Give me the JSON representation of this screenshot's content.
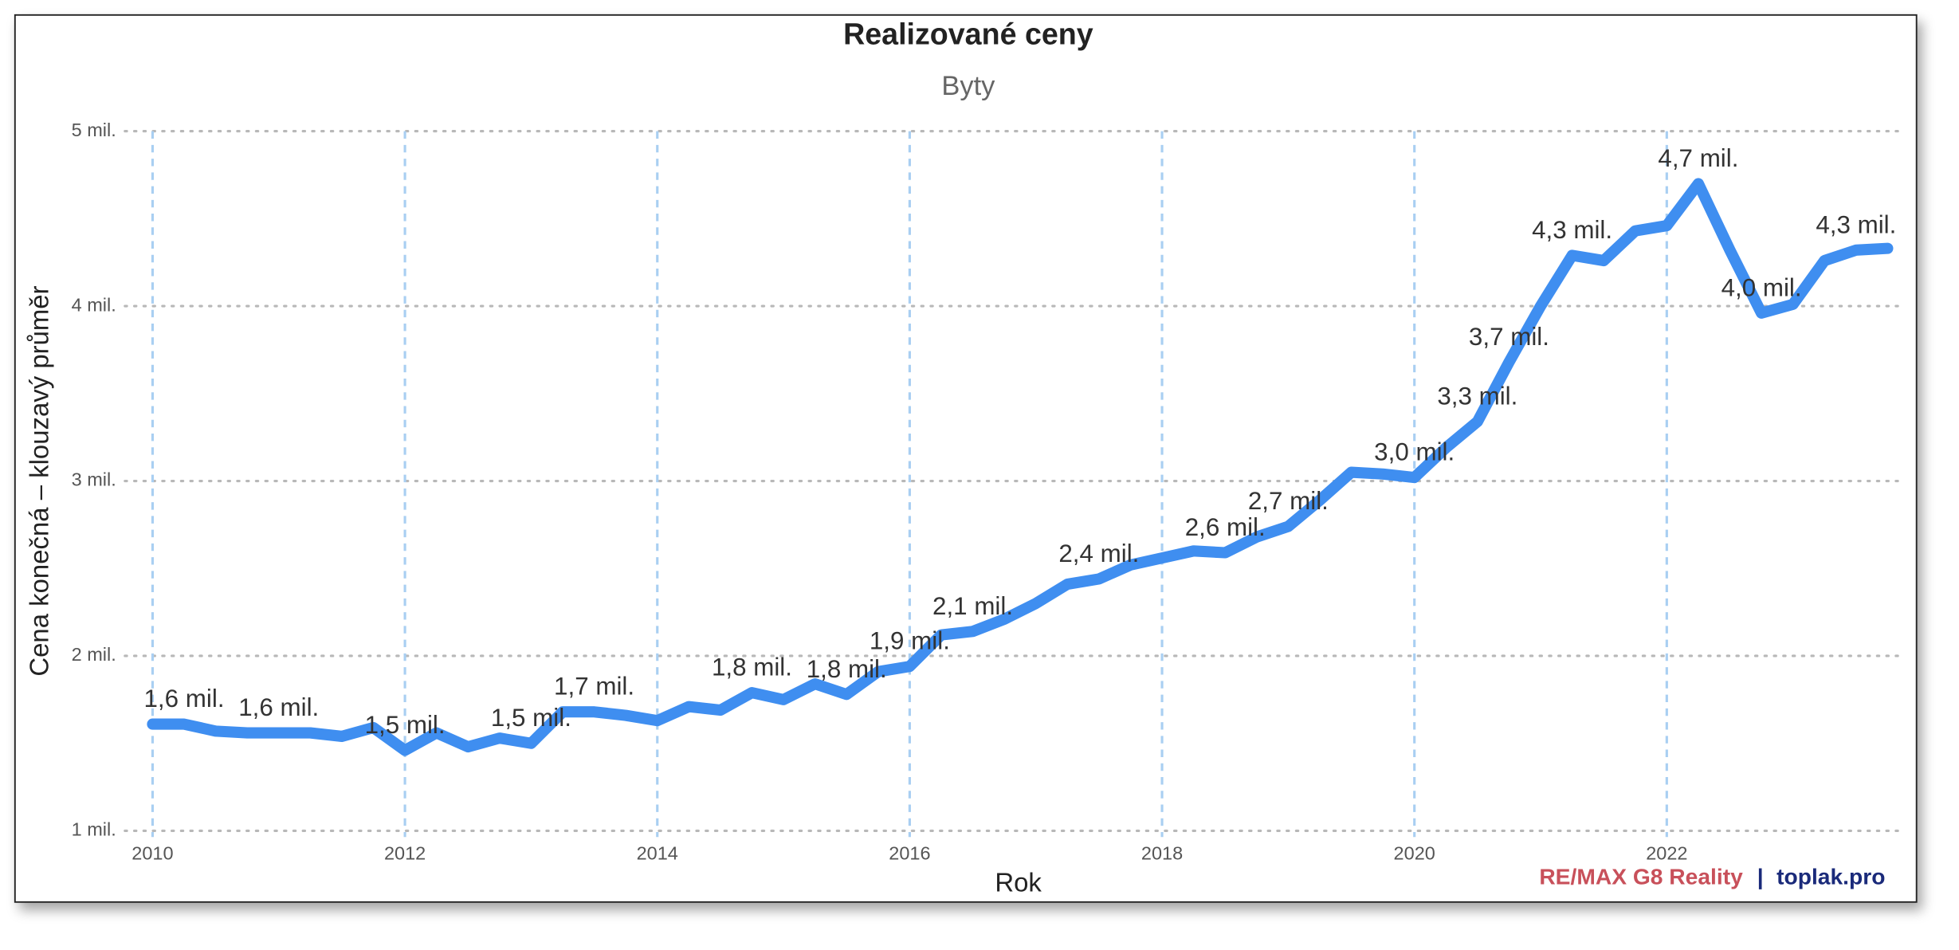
{
  "chart_data": {
    "type": "line",
    "title": "Realizované ceny",
    "subtitle": "Byty",
    "x_label": "Rok",
    "y_label": "Cena konečná – klouzavý průměr",
    "brand": "RE/MAX G8 Reality",
    "separator": "|",
    "site": "toplak.pro",
    "x": [
      2010,
      2010.25,
      2010.5,
      2010.75,
      2011,
      2011.25,
      2011.5,
      2011.75,
      2012,
      2012.25,
      2012.5,
      2012.75,
      2013,
      2013.25,
      2013.5,
      2013.75,
      2014,
      2014.25,
      2014.5,
      2014.75,
      2015,
      2015.25,
      2015.5,
      2015.75,
      2016,
      2016.25,
      2016.5,
      2016.75,
      2017,
      2017.25,
      2017.5,
      2017.75,
      2018,
      2018.25,
      2018.5,
      2018.75,
      2019,
      2019.25,
      2019.5,
      2019.75,
      2020,
      2020.25,
      2020.5,
      2020.75,
      2021,
      2021.25,
      2021.5,
      2021.75,
      2022,
      2022.25,
      2022.5,
      2022.75,
      2023,
      2023.25,
      2023.5,
      2023.75
    ],
    "series": [
      {
        "name": "Byty",
        "color": "#3f8ef0",
        "values": [
          1.61,
          1.61,
          1.57,
          1.56,
          1.56,
          1.56,
          1.54,
          1.59,
          1.46,
          1.56,
          1.48,
          1.53,
          1.5,
          1.68,
          1.68,
          1.66,
          1.63,
          1.71,
          1.69,
          1.79,
          1.75,
          1.84,
          1.78,
          1.91,
          1.94,
          2.12,
          2.14,
          2.21,
          2.3,
          2.41,
          2.44,
          2.52,
          2.56,
          2.6,
          2.59,
          2.68,
          2.74,
          2.89,
          3.05,
          3.04,
          3.02,
          3.19,
          3.34,
          3.68,
          4.0,
          4.29,
          4.26,
          4.43,
          4.46,
          4.7,
          4.32,
          3.96,
          4.01,
          4.26,
          4.32,
          4.33
        ],
        "value_labels": [
          null,
          "1,6 mil.",
          null,
          null,
          "1,6 mil.",
          null,
          null,
          null,
          "1,5 mil.",
          null,
          null,
          null,
          "1,5 mil.",
          null,
          "1,7 mil.",
          null,
          null,
          null,
          null,
          "1,8 mil.",
          null,
          null,
          "1,8 mil.",
          null,
          "1,9 mil.",
          null,
          "2,1 mil.",
          null,
          null,
          null,
          "2,4 mil.",
          null,
          null,
          null,
          "2,6 mil.",
          null,
          "2,7 mil.",
          null,
          null,
          null,
          "3,0 mil.",
          null,
          "3,3 mil.",
          "3,7 mil.",
          null,
          "4,3 mil.",
          null,
          null,
          null,
          "4,7 mil.",
          null,
          "4,0 mil.",
          null,
          null,
          "4,3 mil.",
          null
        ]
      }
    ],
    "xlim": [
      2009.88,
      2023.89
    ],
    "xticks": [
      2010,
      2012,
      2014,
      2016,
      2018,
      2020,
      2022
    ],
    "ylim": [
      1,
      5
    ],
    "yticks": [
      {
        "value": 1,
        "label": "1 mil."
      },
      {
        "value": 2,
        "label": "2 mil."
      },
      {
        "value": 3,
        "label": "3 mil."
      },
      {
        "value": 4,
        "label": "4 mil."
      },
      {
        "value": 5,
        "label": "5 mil."
      }
    ],
    "grid": true,
    "x_grid_color": "#a9cff2",
    "y_grid_color": "#b8b8b8"
  }
}
